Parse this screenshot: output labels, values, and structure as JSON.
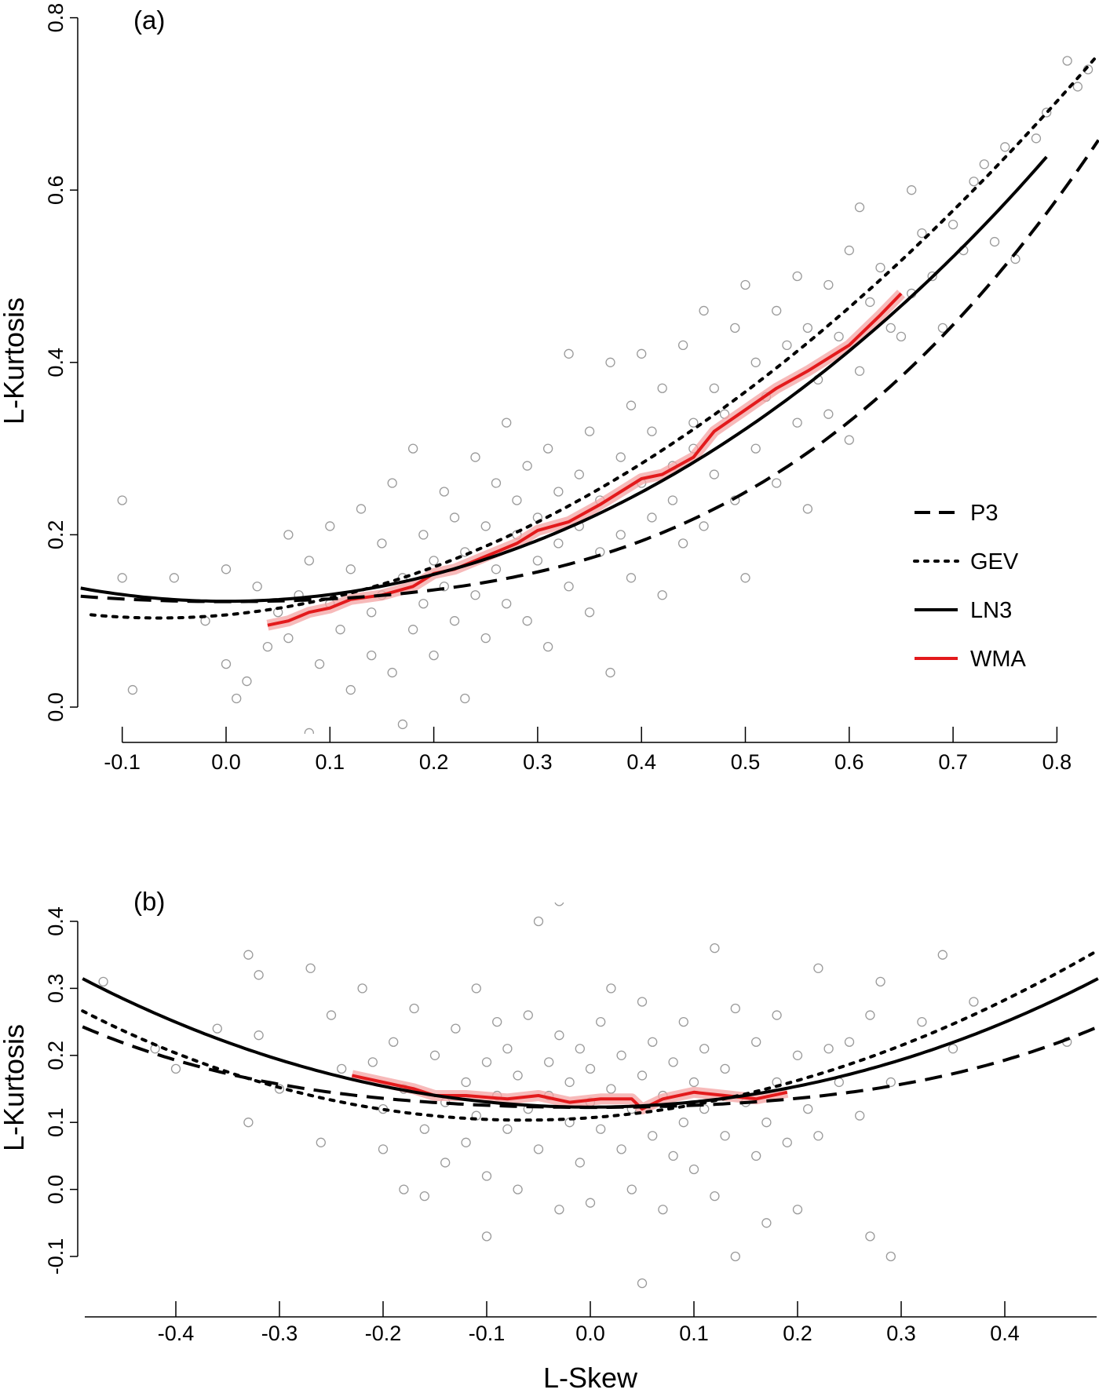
{
  "chart_data": [
    {
      "type": "scatter",
      "panel_label": "(a)",
      "xlabel": "",
      "ylabel": "L-Kurtosis",
      "xlim": [
        -0.14,
        0.84
      ],
      "ylim": [
        0.0,
        0.8
      ],
      "xticks": [
        "-0.1",
        "0.0",
        "0.1",
        "0.2",
        "0.3",
        "0.4",
        "0.5",
        "0.6",
        "0.7",
        "0.8"
      ],
      "yticks": [
        "0.0",
        "0.2",
        "0.4",
        "0.6",
        "0.8"
      ],
      "legend": {
        "position": "right",
        "entries": [
          {
            "name": "P3",
            "style": "dashed",
            "color": "#000000"
          },
          {
            "name": "GEV",
            "style": "dotted",
            "color": "#000000"
          },
          {
            "name": "LN3",
            "style": "solid",
            "color": "#000000"
          },
          {
            "name": "WMA",
            "style": "solid",
            "color": "#e31a1c"
          }
        ]
      },
      "curve_ranges": {
        "P3": [
          -0.14,
          0.84
        ],
        "GEV": [
          -0.13,
          0.84
        ],
        "LN3": [
          -0.14,
          0.79
        ]
      },
      "points": [
        [
          -0.1,
          0.24
        ],
        [
          -0.09,
          0.02
        ],
        [
          -0.1,
          0.15
        ],
        [
          -0.05,
          0.15
        ],
        [
          -0.02,
          0.1
        ],
        [
          0,
          0.05
        ],
        [
          0,
          0.16
        ],
        [
          0.01,
          0.01
        ],
        [
          0.02,
          0.03
        ],
        [
          0.03,
          0.14
        ],
        [
          0.04,
          0.07
        ],
        [
          0.05,
          0.11
        ],
        [
          0.06,
          0.2
        ],
        [
          0.06,
          0.08
        ],
        [
          0.07,
          0.13
        ],
        [
          0.08,
          -0.03
        ],
        [
          0.08,
          0.17
        ],
        [
          0.09,
          0.05
        ],
        [
          0.1,
          0.12
        ],
        [
          0.1,
          0.21
        ],
        [
          0.11,
          0.09
        ],
        [
          0.12,
          0.16
        ],
        [
          0.12,
          0.02
        ],
        [
          0.13,
          0.23
        ],
        [
          0.14,
          0.11
        ],
        [
          0.14,
          0.06
        ],
        [
          0.15,
          0.19
        ],
        [
          0.15,
          0.13
        ],
        [
          0.16,
          0.26
        ],
        [
          0.16,
          0.04
        ],
        [
          0.17,
          0.15
        ],
        [
          0.17,
          -0.02
        ],
        [
          0.18,
          0.09
        ],
        [
          0.18,
          0.3
        ],
        [
          0.19,
          0.2
        ],
        [
          0.19,
          0.12
        ],
        [
          0.2,
          0.17
        ],
        [
          0.2,
          0.06
        ],
        [
          0.21,
          0.25
        ],
        [
          0.21,
          0.14
        ],
        [
          0.22,
          0.1
        ],
        [
          0.22,
          0.22
        ],
        [
          0.23,
          0.01
        ],
        [
          0.23,
          0.18
        ],
        [
          0.24,
          0.29
        ],
        [
          0.24,
          0.13
        ],
        [
          0.25,
          0.21
        ],
        [
          0.25,
          0.08
        ],
        [
          0.26,
          0.26
        ],
        [
          0.26,
          0.16
        ],
        [
          0.27,
          0.33
        ],
        [
          0.27,
          0.12
        ],
        [
          0.28,
          0.2
        ],
        [
          0.28,
          0.24
        ],
        [
          0.29,
          0.1
        ],
        [
          0.29,
          0.28
        ],
        [
          0.3,
          0.17
        ],
        [
          0.3,
          0.22
        ],
        [
          0.31,
          0.07
        ],
        [
          0.31,
          0.3
        ],
        [
          0.32,
          0.19
        ],
        [
          0.32,
          0.25
        ],
        [
          0.33,
          0.41
        ],
        [
          0.33,
          0.14
        ],
        [
          0.34,
          0.27
        ],
        [
          0.34,
          0.21
        ],
        [
          0.35,
          0.11
        ],
        [
          0.35,
          0.32
        ],
        [
          0.36,
          0.24
        ],
        [
          0.36,
          0.18
        ],
        [
          0.37,
          0.04
        ],
        [
          0.37,
          0.4
        ],
        [
          0.38,
          0.29
        ],
        [
          0.38,
          0.2
        ],
        [
          0.39,
          0.35
        ],
        [
          0.39,
          0.15
        ],
        [
          0.4,
          0.41
        ],
        [
          0.4,
          0.26
        ],
        [
          0.41,
          0.22
        ],
        [
          0.41,
          0.32
        ],
        [
          0.42,
          0.37
        ],
        [
          0.42,
          0.13
        ],
        [
          0.43,
          0.28
        ],
        [
          0.43,
          0.24
        ],
        [
          0.44,
          0.42
        ],
        [
          0.44,
          0.19
        ],
        [
          0.45,
          0.33
        ],
        [
          0.45,
          0.3
        ],
        [
          0.46,
          0.46
        ],
        [
          0.46,
          0.21
        ],
        [
          0.47,
          0.37
        ],
        [
          0.47,
          0.27
        ],
        [
          0.48,
          0.34
        ],
        [
          0.49,
          0.44
        ],
        [
          0.49,
          0.24
        ],
        [
          0.5,
          0.49
        ],
        [
          0.5,
          0.15
        ],
        [
          0.51,
          0.4
        ],
        [
          0.51,
          0.3
        ],
        [
          0.52,
          0.36
        ],
        [
          0.53,
          0.46
        ],
        [
          0.53,
          0.26
        ],
        [
          0.54,
          0.42
        ],
        [
          0.55,
          0.5
        ],
        [
          0.55,
          0.33
        ],
        [
          0.56,
          0.23
        ],
        [
          0.56,
          0.44
        ],
        [
          0.57,
          0.38
        ],
        [
          0.58,
          0.49
        ],
        [
          0.58,
          0.34
        ],
        [
          0.59,
          0.43
        ],
        [
          0.6,
          0.53
        ],
        [
          0.6,
          0.31
        ],
        [
          0.61,
          0.58
        ],
        [
          0.61,
          0.39
        ],
        [
          0.62,
          0.47
        ],
        [
          0.63,
          0.51
        ],
        [
          0.64,
          0.44
        ],
        [
          0.65,
          0.43
        ],
        [
          0.66,
          0.6
        ],
        [
          0.66,
          0.48
        ],
        [
          0.67,
          0.55
        ],
        [
          0.68,
          0.5
        ],
        [
          0.69,
          0.44
        ],
        [
          0.7,
          0.56
        ],
        [
          0.71,
          0.53
        ],
        [
          0.72,
          0.61
        ],
        [
          0.73,
          0.63
        ],
        [
          0.74,
          0.54
        ],
        [
          0.75,
          0.65
        ],
        [
          0.76,
          0.52
        ],
        [
          0.78,
          0.66
        ],
        [
          0.79,
          0.69
        ],
        [
          0.81,
          0.75
        ],
        [
          0.83,
          0.74
        ],
        [
          0.82,
          0.72
        ]
      ],
      "wma": [
        [
          0.04,
          0.095
        ],
        [
          0.06,
          0.1
        ],
        [
          0.08,
          0.11
        ],
        [
          0.1,
          0.115
        ],
        [
          0.12,
          0.125
        ],
        [
          0.15,
          0.13
        ],
        [
          0.18,
          0.14
        ],
        [
          0.2,
          0.155
        ],
        [
          0.22,
          0.16
        ],
        [
          0.25,
          0.175
        ],
        [
          0.28,
          0.19
        ],
        [
          0.3,
          0.205
        ],
        [
          0.33,
          0.215
        ],
        [
          0.36,
          0.235
        ],
        [
          0.38,
          0.25
        ],
        [
          0.4,
          0.265
        ],
        [
          0.42,
          0.27
        ],
        [
          0.45,
          0.29
        ],
        [
          0.47,
          0.32
        ],
        [
          0.5,
          0.345
        ],
        [
          0.53,
          0.37
        ],
        [
          0.56,
          0.39
        ],
        [
          0.6,
          0.42
        ],
        [
          0.63,
          0.455
        ],
        [
          0.65,
          0.48
        ]
      ]
    },
    {
      "type": "scatter",
      "panel_label": "(b)",
      "xlabel": "L-Skew",
      "ylabel": "L-Kurtosis",
      "xlim": [
        -0.49,
        0.49
      ],
      "ylim": [
        -0.1,
        0.4
      ],
      "xticks": [
        "-0.4",
        "-0.3",
        "-0.2",
        "-0.1",
        "0.0",
        "0.1",
        "0.2",
        "0.3",
        "0.4"
      ],
      "yticks": [
        "-0.1",
        "0.0",
        "0.1",
        "0.2",
        "0.3",
        "0.4"
      ],
      "curve_ranges": {
        "P3": [
          -0.49,
          0.49
        ],
        "GEV": [
          -0.49,
          0.49
        ],
        "LN3": [
          -0.49,
          0.49
        ]
      },
      "points": [
        [
          -0.47,
          0.31
        ],
        [
          -0.42,
          0.21
        ],
        [
          -0.4,
          0.18
        ],
        [
          -0.36,
          0.24
        ],
        [
          -0.33,
          0.35
        ],
        [
          -0.32,
          0.32
        ],
        [
          -0.32,
          0.23
        ],
        [
          -0.33,
          0.1
        ],
        [
          -0.3,
          0.15
        ],
        [
          -0.27,
          0.33
        ],
        [
          -0.26,
          0.07
        ],
        [
          -0.25,
          0.26
        ],
        [
          -0.24,
          0.18
        ],
        [
          -0.22,
          0.3
        ],
        [
          -0.21,
          0.19
        ],
        [
          -0.2,
          0.06
        ],
        [
          -0.2,
          0.12
        ],
        [
          -0.19,
          0.22
        ],
        [
          -0.18,
          0.0
        ],
        [
          -0.18,
          0.15
        ],
        [
          -0.17,
          0.27
        ],
        [
          -0.16,
          0.09
        ],
        [
          -0.16,
          -0.01
        ],
        [
          -0.15,
          0.2
        ],
        [
          -0.14,
          0.13
        ],
        [
          -0.14,
          0.04
        ],
        [
          -0.13,
          0.24
        ],
        [
          -0.12,
          0.16
        ],
        [
          -0.12,
          0.07
        ],
        [
          -0.11,
          0.3
        ],
        [
          -0.11,
          0.11
        ],
        [
          -0.1,
          0.19
        ],
        [
          -0.1,
          0.02
        ],
        [
          -0.1,
          -0.07
        ],
        [
          -0.09,
          0.25
        ],
        [
          -0.09,
          0.14
        ],
        [
          -0.08,
          0.09
        ],
        [
          -0.08,
          0.21
        ],
        [
          -0.07,
          0.0
        ],
        [
          -0.07,
          0.17
        ],
        [
          -0.06,
          0.12
        ],
        [
          -0.06,
          0.26
        ],
        [
          -0.05,
          0.06
        ],
        [
          -0.05,
          0.4
        ],
        [
          -0.04,
          0.19
        ],
        [
          -0.04,
          0.14
        ],
        [
          -0.03,
          -0.03
        ],
        [
          -0.03,
          0.43
        ],
        [
          -0.03,
          0.23
        ],
        [
          -0.02,
          0.1
        ],
        [
          -0.02,
          0.16
        ],
        [
          -0.01,
          0.21
        ],
        [
          -0.01,
          0.04
        ],
        [
          0,
          0.13
        ],
        [
          0,
          0.18
        ],
        [
          0,
          -0.02
        ],
        [
          0.01,
          0.25
        ],
        [
          0.01,
          0.09
        ],
        [
          0.02,
          0.15
        ],
        [
          0.02,
          0.3
        ],
        [
          0.03,
          0.06
        ],
        [
          0.03,
          0.2
        ],
        [
          0.04,
          0.12
        ],
        [
          0.04,
          0.0
        ],
        [
          0.05,
          0.17
        ],
        [
          0.05,
          -0.14
        ],
        [
          0.05,
          0.28
        ],
        [
          0.06,
          0.08
        ],
        [
          0.06,
          0.22
        ],
        [
          0.07,
          0.14
        ],
        [
          0.07,
          -0.03
        ],
        [
          0.08,
          0.19
        ],
        [
          0.08,
          0.05
        ],
        [
          0.09,
          0.1
        ],
        [
          0.09,
          0.25
        ],
        [
          0.1,
          0.16
        ],
        [
          0.1,
          0.03
        ],
        [
          0.11,
          0.21
        ],
        [
          0.11,
          0.12
        ],
        [
          0.12,
          0.36
        ],
        [
          0.12,
          -0.01
        ],
        [
          0.13,
          0.18
        ],
        [
          0.13,
          0.08
        ],
        [
          0.14,
          0.27
        ],
        [
          0.14,
          -0.1
        ],
        [
          0.15,
          0.13
        ],
        [
          0.16,
          0.05
        ],
        [
          0.16,
          0.22
        ],
        [
          0.17,
          0.1
        ],
        [
          0.17,
          -0.05
        ],
        [
          0.18,
          0.26
        ],
        [
          0.18,
          0.16
        ],
        [
          0.19,
          0.07
        ],
        [
          0.2,
          0.2
        ],
        [
          0.2,
          -0.03
        ],
        [
          0.21,
          0.12
        ],
        [
          0.22,
          0.33
        ],
        [
          0.22,
          0.08
        ],
        [
          0.23,
          0.21
        ],
        [
          0.24,
          0.16
        ],
        [
          0.25,
          0.22
        ],
        [
          0.26,
          0.11
        ],
        [
          0.27,
          0.26
        ],
        [
          0.27,
          -0.07
        ],
        [
          0.28,
          0.31
        ],
        [
          0.29,
          -0.1
        ],
        [
          0.29,
          0.16
        ],
        [
          0.32,
          0.25
        ],
        [
          0.34,
          0.35
        ],
        [
          0.35,
          0.21
        ],
        [
          0.37,
          0.28
        ],
        [
          0.46,
          0.22
        ]
      ],
      "wma": [
        [
          -0.23,
          0.17
        ],
        [
          -0.2,
          0.16
        ],
        [
          -0.17,
          0.15
        ],
        [
          -0.15,
          0.14
        ],
        [
          -0.12,
          0.14
        ],
        [
          -0.08,
          0.135
        ],
        [
          -0.05,
          0.14
        ],
        [
          -0.02,
          0.13
        ],
        [
          0.01,
          0.135
        ],
        [
          0.04,
          0.135
        ],
        [
          0.05,
          0.12
        ],
        [
          0.07,
          0.135
        ],
        [
          0.1,
          0.145
        ],
        [
          0.13,
          0.14
        ],
        [
          0.16,
          0.135
        ],
        [
          0.19,
          0.145
        ]
      ]
    }
  ],
  "curve_coefficients": {
    "GEV": {
      "power_basis": [
        0.10701,
        0.1109,
        0.84838,
        -0.06669,
        0.00567,
        -0.04208,
        0.03763
      ]
    },
    "LN3": {
      "power_basis": [
        0.12282,
        0,
        0.77518,
        0,
        0.12279,
        0,
        -0.13638,
        0,
        0.11368
      ]
    },
    "P3": {
      "power_basis": [
        0.1224,
        0,
        0.30115,
        0,
        0.95812,
        0,
        -0.57488,
        0,
        0.19383
      ]
    }
  },
  "colors": {
    "points": "#9a9a9a",
    "wma": "#e31a1c",
    "wma_band": "#f4a3a3",
    "curves": "#000000"
  }
}
